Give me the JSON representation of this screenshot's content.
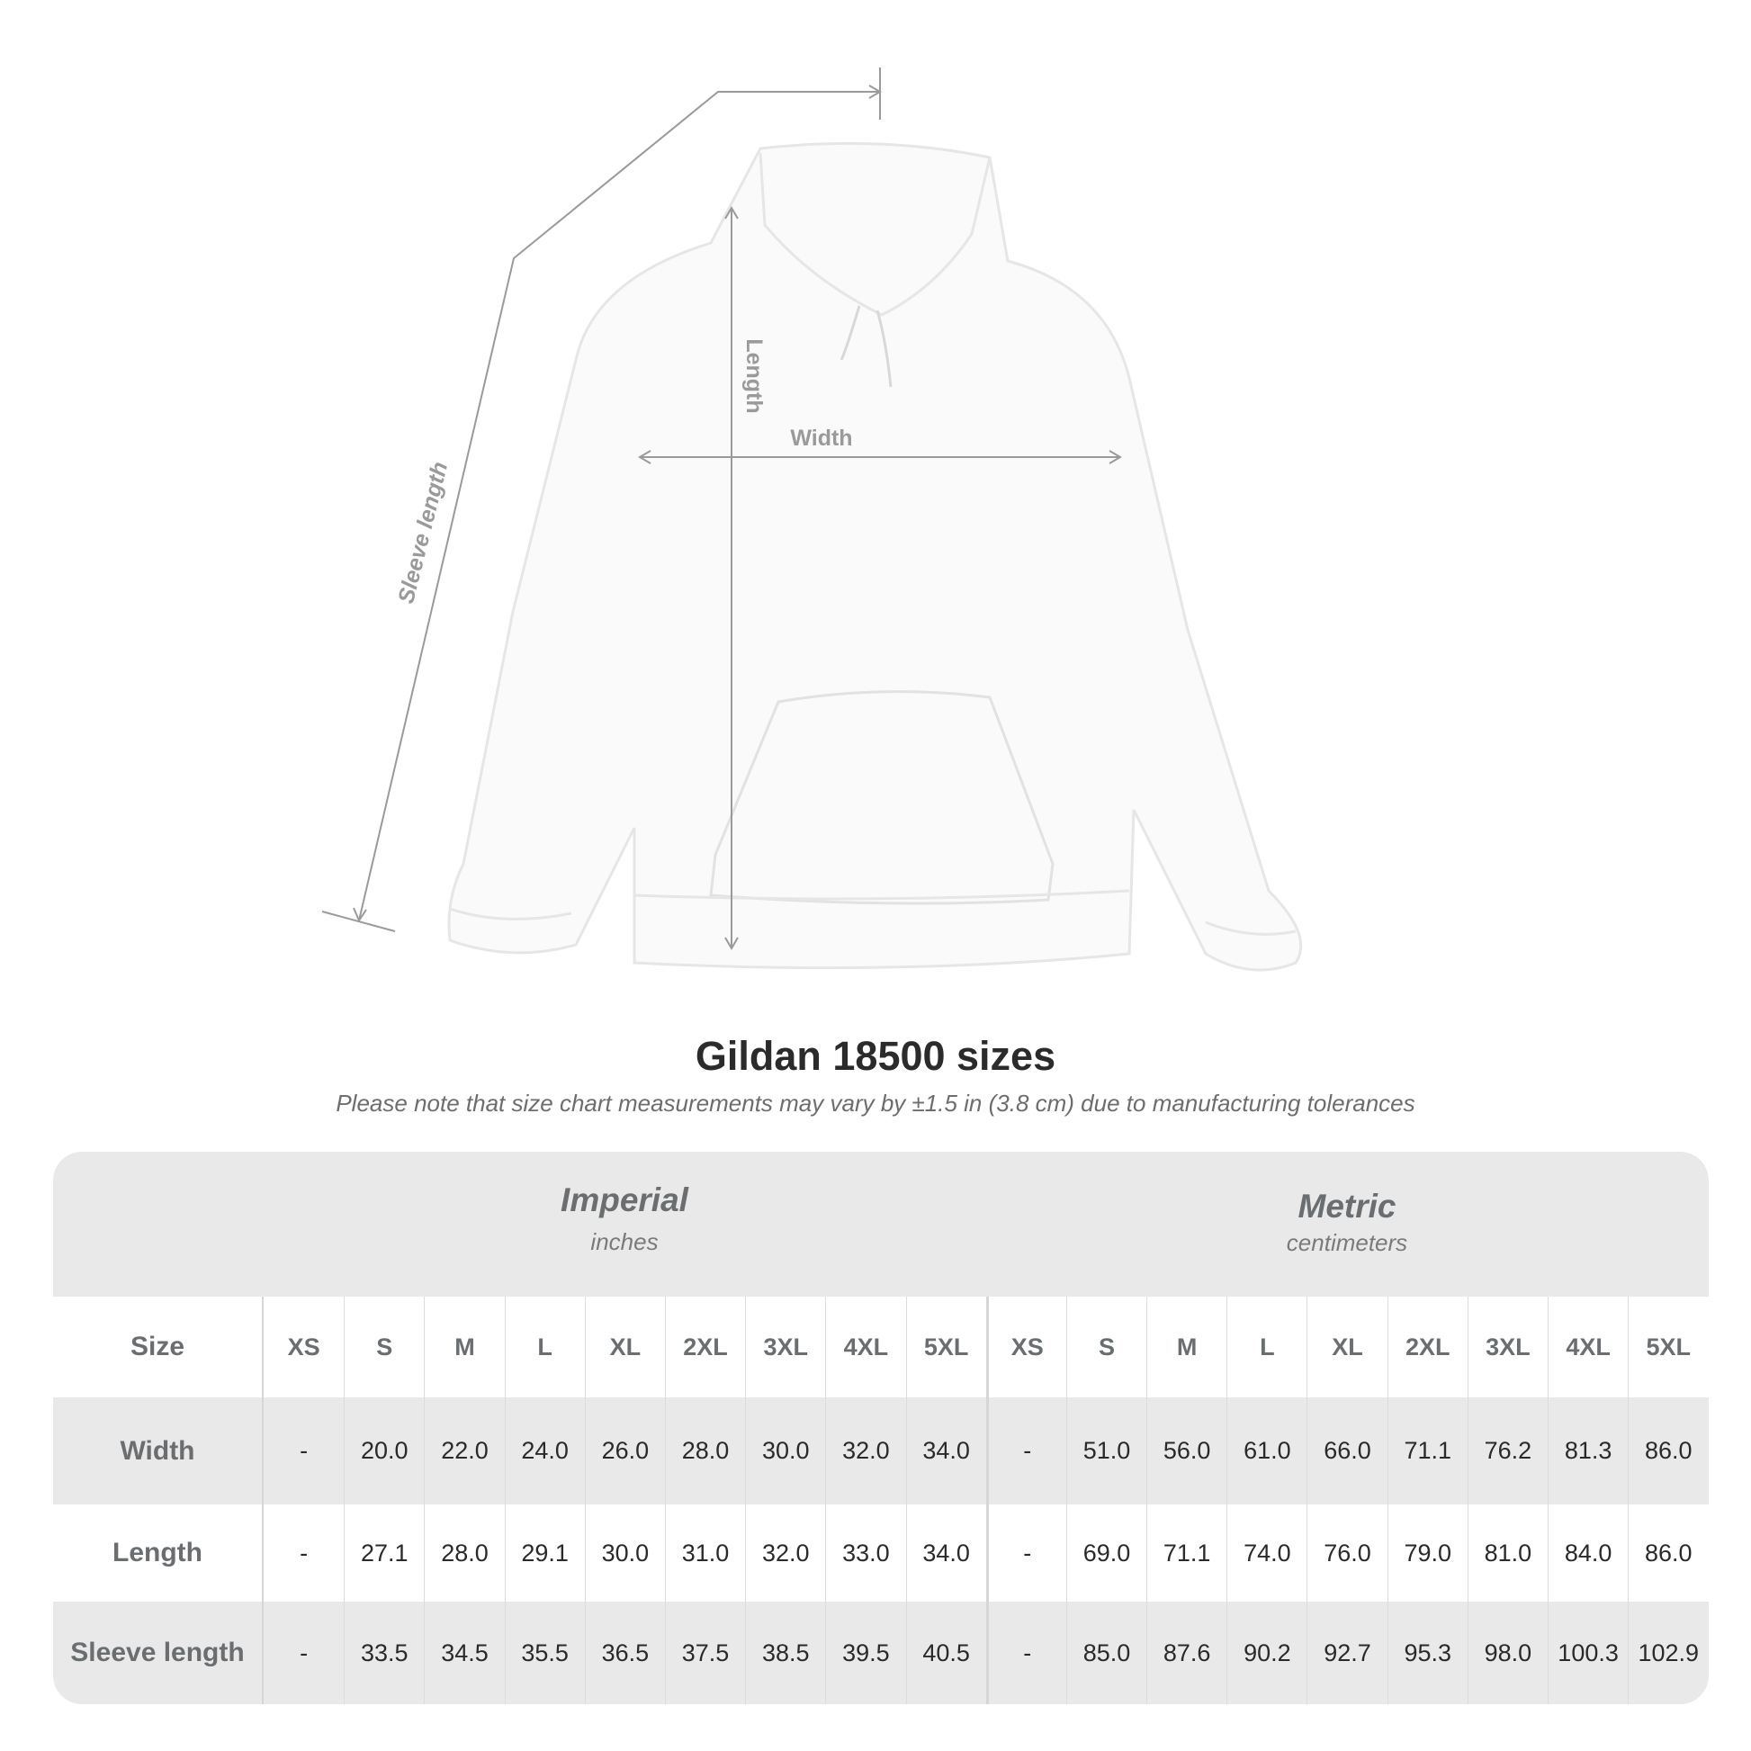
{
  "diagram": {
    "sleeve_label": "Sleeve length",
    "length_label": "Length",
    "width_label": "Width"
  },
  "title": "Gildan 18500 sizes",
  "subtitle": "Please note that size chart measurements may vary by ±1.5 in (3.8 cm) due to manufacturing tolerances",
  "imperial": {
    "name": "Imperial",
    "unit": "inches"
  },
  "metric": {
    "name": "Metric",
    "unit": "centimeters"
  },
  "sizes": [
    "XS",
    "S",
    "M",
    "L",
    "XL",
    "2XL",
    "3XL",
    "4XL",
    "5XL"
  ],
  "rows": [
    {
      "label": "Size"
    },
    {
      "label": "Width",
      "imperial": [
        "-",
        "20.0",
        "22.0",
        "24.0",
        "26.0",
        "28.0",
        "30.0",
        "32.0",
        "34.0"
      ],
      "metric": [
        "-",
        "51.0",
        "56.0",
        "61.0",
        "66.0",
        "71.1",
        "76.2",
        "81.3",
        "86.0"
      ]
    },
    {
      "label": "Length",
      "imperial": [
        "-",
        "27.1",
        "28.0",
        "29.1",
        "30.0",
        "31.0",
        "32.0",
        "33.0",
        "34.0"
      ],
      "metric": [
        "-",
        "69.0",
        "71.1",
        "74.0",
        "76.0",
        "79.0",
        "81.0",
        "84.0",
        "86.0"
      ]
    },
    {
      "label": "Sleeve length",
      "imperial": [
        "-",
        "33.5",
        "34.5",
        "35.5",
        "36.5",
        "37.5",
        "38.5",
        "39.5",
        "40.5"
      ],
      "metric": [
        "-",
        "85.0",
        "87.6",
        "90.2",
        "92.7",
        "95.3",
        "98.0",
        "100.3",
        "102.9"
      ]
    }
  ]
}
